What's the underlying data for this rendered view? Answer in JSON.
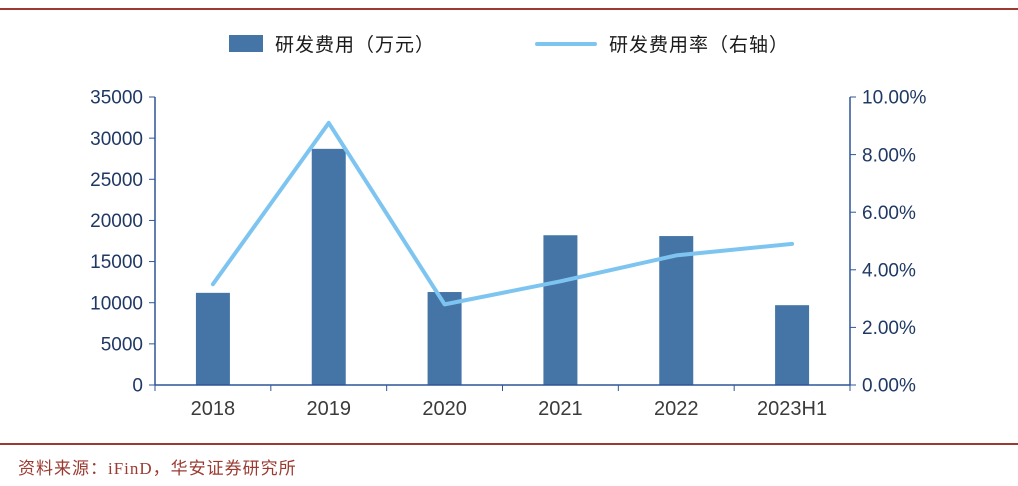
{
  "legend": {
    "bar_label": "研发费用（万元）",
    "line_label": "研发费用率（右轴）"
  },
  "source_note": "资料来源：iFinD，华安证券研究所",
  "colors": {
    "bar": "#4575a7",
    "line": "#7dc5f0",
    "axis": "#2f5597",
    "axis_text": "#1f3864",
    "category_text": "#3b3b3b",
    "rule": "#9b3a31"
  },
  "chart_data": {
    "type": "bar",
    "subtype": "bar+line combo",
    "categories": [
      "2018",
      "2019",
      "2020",
      "2021",
      "2022",
      "2023H1"
    ],
    "series": [
      {
        "name": "研发费用（万元）",
        "type": "bar",
        "axis": "left",
        "values": [
          11200,
          28700,
          11300,
          18200,
          18100,
          9700
        ]
      },
      {
        "name": "研发费用率（右轴）",
        "type": "line",
        "axis": "right",
        "values": [
          3.5,
          9.1,
          2.8,
          3.6,
          4.5,
          4.9
        ]
      }
    ],
    "left_axis": {
      "min": 0,
      "max": 35000,
      "step": 5000,
      "tick_labels": [
        "0",
        "5000",
        "10000",
        "15000",
        "20000",
        "25000",
        "30000",
        "35000"
      ]
    },
    "right_axis": {
      "min": 0,
      "max": 10,
      "step": 2,
      "tick_labels": [
        "0.00%",
        "2.00%",
        "4.00%",
        "6.00%",
        "8.00%",
        "10.00%"
      ]
    },
    "grid": false,
    "legend_position": "top",
    "title": "",
    "xlabel": "",
    "ylabel": ""
  }
}
